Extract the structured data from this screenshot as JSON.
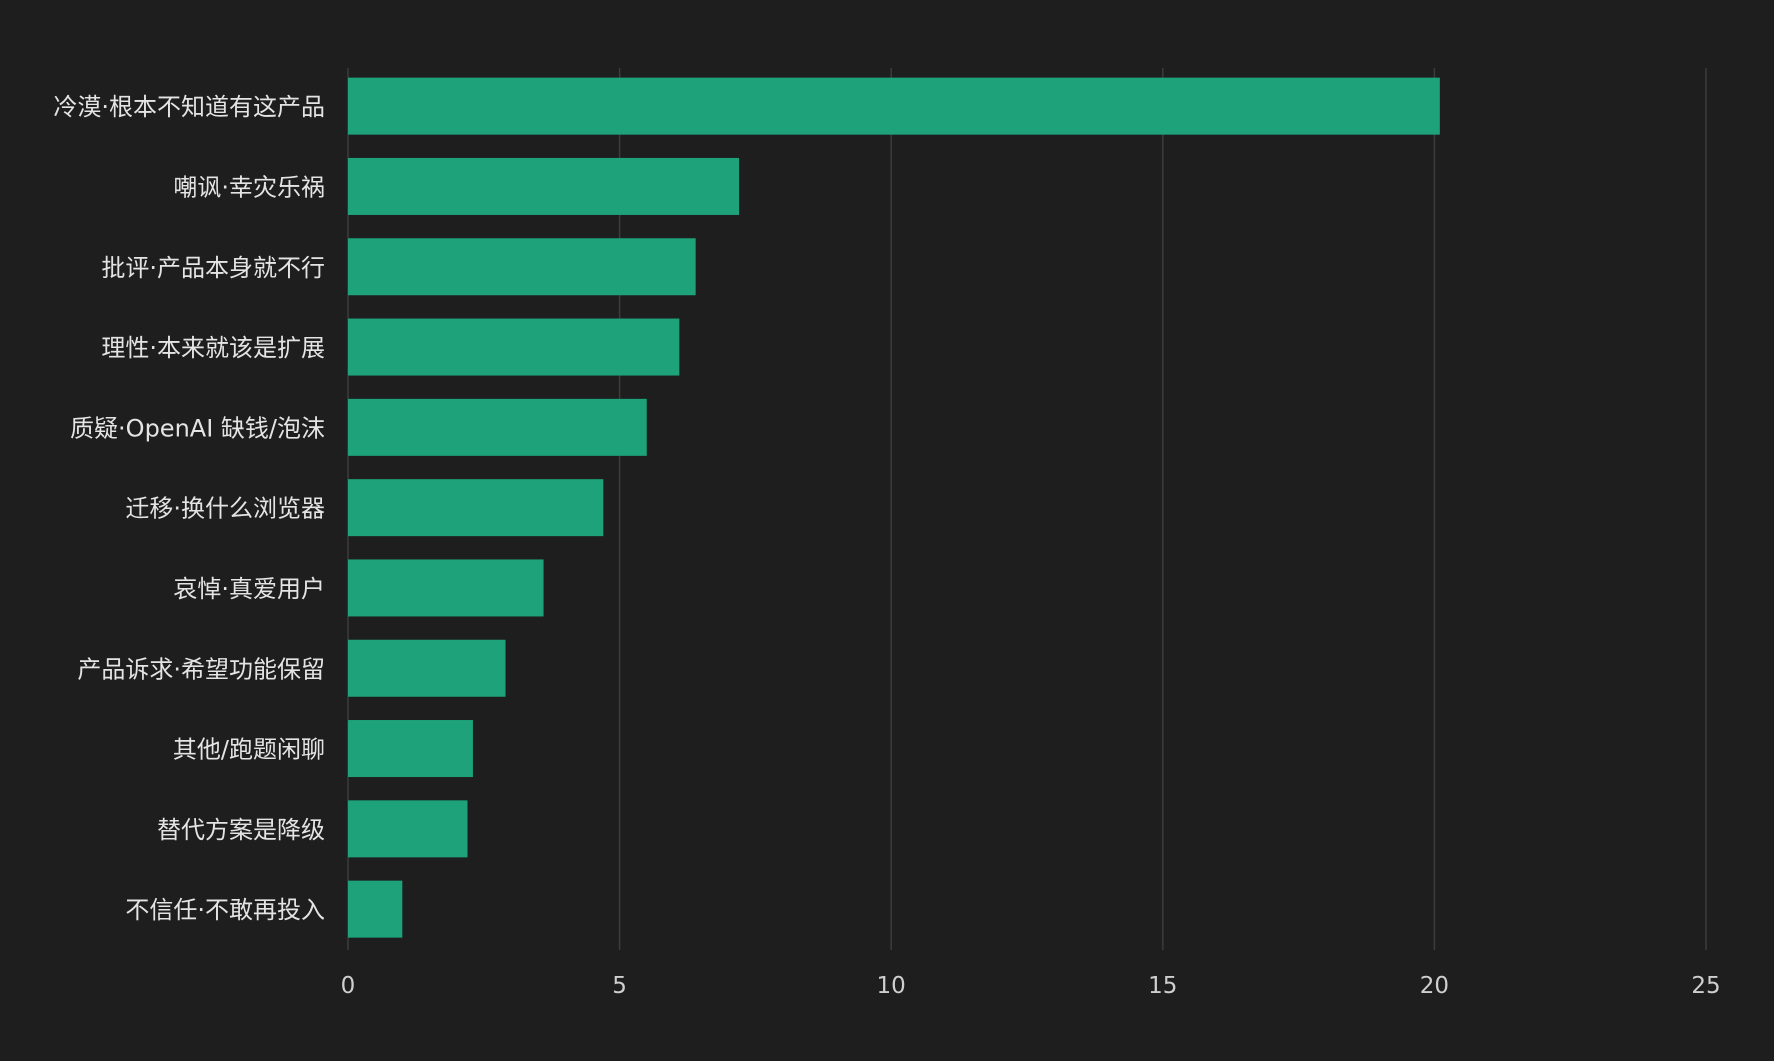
{
  "chart_data": {
    "type": "bar",
    "orientation": "horizontal",
    "categories": [
      "冷漠·根本不知道有这产品",
      "嘲讽·幸灾乐祸",
      "批评·产品本身就不行",
      "理性·本来就该是扩展",
      "质疑·OpenAI 缺钱/泡沫",
      "迁移·换什么浏览器",
      "哀悼·真爱用户",
      "产品诉求·希望功能保留",
      "其他/跑题闲聊",
      "替代方案是降级",
      "不信任·不敢再投入"
    ],
    "values": [
      20.1,
      7.2,
      6.4,
      6.1,
      5.5,
      4.7,
      3.6,
      2.9,
      2.3,
      2.2,
      1.0
    ],
    "xlim": [
      0,
      25
    ],
    "x_ticks": [
      "0",
      "5",
      "10",
      "15",
      "20",
      "25"
    ],
    "x_tick_values": [
      0,
      5,
      10,
      15,
      20,
      25
    ],
    "grid": true,
    "legend": "none",
    "bar_color": "#1da27a",
    "background_color": "#1e1e1e",
    "grid_color": "#3c3c3c",
    "label_color": "#e4e4e4"
  }
}
